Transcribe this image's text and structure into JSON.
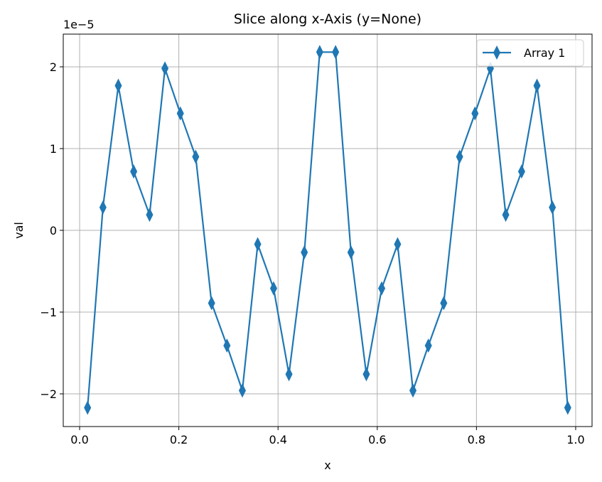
{
  "chart_data": {
    "type": "line",
    "title": "Slice along x-Axis (y=None)",
    "xlabel": "x",
    "ylabel": "val",
    "y_offset_label": "1e−5",
    "xlim": [
      -0.033,
      1.033
    ],
    "ylim": [
      -2.4,
      2.4
    ],
    "x_ticks": [
      0.0,
      0.2,
      0.4,
      0.6,
      0.8,
      1.0
    ],
    "x_tick_labels": [
      "0.0",
      "0.2",
      "0.4",
      "0.6",
      "0.8",
      "1.0"
    ],
    "y_ticks": [
      -2,
      -1,
      0,
      1,
      2
    ],
    "y_tick_labels": [
      "−2",
      "−1",
      "0",
      "1",
      "2"
    ],
    "grid": true,
    "legend_position": "top-right",
    "series": [
      {
        "name": "Array 1",
        "color": "#1f77b4",
        "marker": "thin-diamond",
        "x": [
          0.016,
          0.047,
          0.078,
          0.109,
          0.141,
          0.172,
          0.203,
          0.234,
          0.266,
          0.297,
          0.328,
          0.359,
          0.391,
          0.422,
          0.453,
          0.484,
          0.516,
          0.547,
          0.578,
          0.609,
          0.641,
          0.672,
          0.703,
          0.734,
          0.766,
          0.797,
          0.828,
          0.859,
          0.891,
          0.922,
          0.953,
          0.984
        ],
        "y": [
          -2.17,
          0.28,
          1.77,
          0.72,
          0.19,
          1.98,
          1.43,
          0.9,
          -0.89,
          -1.41,
          -1.96,
          -0.17,
          -0.71,
          -1.76,
          -0.27,
          2.18,
          2.18,
          -0.27,
          -1.76,
          -0.71,
          -0.17,
          -1.96,
          -1.41,
          -0.89,
          0.9,
          1.43,
          1.98,
          0.19,
          0.72,
          1.77,
          0.28,
          -2.17
        ]
      }
    ]
  }
}
